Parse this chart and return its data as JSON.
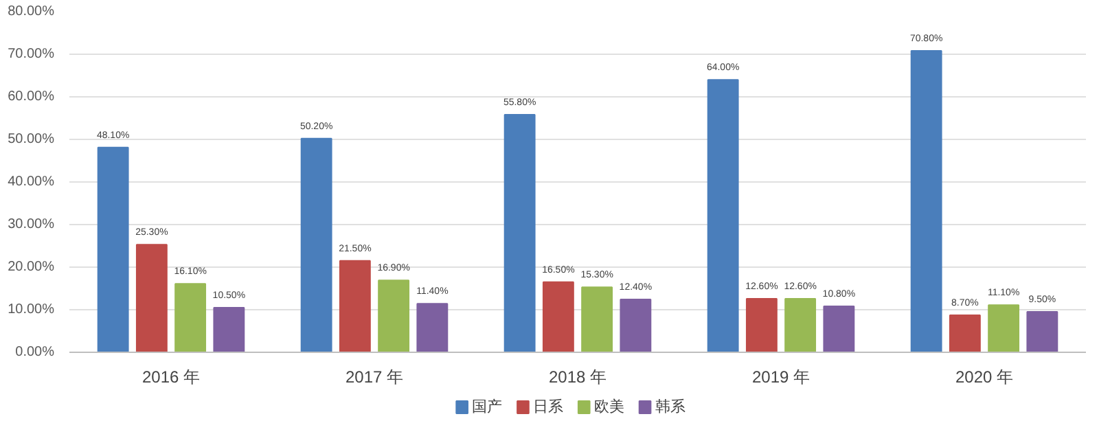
{
  "chart_data": {
    "type": "bar",
    "categories": [
      "2016 年",
      "2017 年",
      "2018 年",
      "2019 年",
      "2020 年"
    ],
    "series": [
      {
        "name": "国产",
        "color": "#4a7ebb",
        "values": [
          48.1,
          50.2,
          55.8,
          64.0,
          70.8
        ],
        "value_labels": [
          "48.10%",
          "50.20%",
          "55.80%",
          "64.00%",
          "70.80%"
        ]
      },
      {
        "name": "日系",
        "color": "#be4b48",
        "values": [
          25.3,
          21.5,
          16.5,
          12.6,
          8.7
        ],
        "value_labels": [
          "25.30%",
          "21.50%",
          "16.50%",
          "12.60%",
          "8.70%"
        ]
      },
      {
        "name": "欧美",
        "color": "#98b954",
        "values": [
          16.1,
          16.9,
          15.3,
          12.6,
          11.1
        ],
        "value_labels": [
          "16.10%",
          "16.90%",
          "15.30%",
          "12.60%",
          "11.10%"
        ]
      },
      {
        "name": "韩系",
        "color": "#7d60a0",
        "values": [
          10.5,
          11.4,
          12.4,
          10.8,
          9.5
        ],
        "value_labels": [
          "10.50%",
          "11.40%",
          "12.40%",
          "10.80%",
          "9.50%"
        ]
      }
    ],
    "ylim": [
      0,
      80
    ],
    "yticks": [
      {
        "value": 0,
        "label": "0.00%"
      },
      {
        "value": 10,
        "label": "10.00%"
      },
      {
        "value": 20,
        "label": "20.00%"
      },
      {
        "value": 30,
        "label": "30.00%"
      },
      {
        "value": 40,
        "label": "40.00%"
      },
      {
        "value": 50,
        "label": "50.00%"
      },
      {
        "value": 60,
        "label": "60.00%"
      },
      {
        "value": 70,
        "label": "70.00%"
      },
      {
        "value": 80,
        "label": "80.00%"
      }
    ],
    "grid": "y",
    "legend": "bottom"
  }
}
